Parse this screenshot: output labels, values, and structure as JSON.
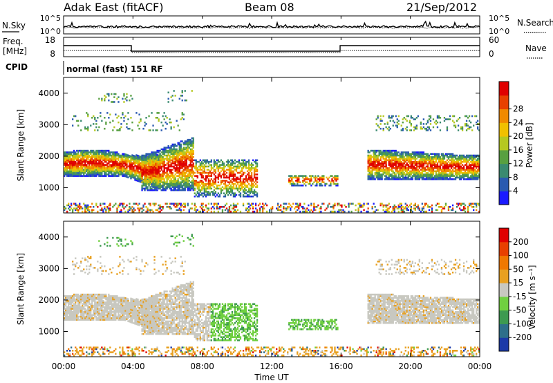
{
  "header": {
    "radar": "Adak East (fitACF)",
    "beam": "Beam 08",
    "date": "21/Sep/2012"
  },
  "nsky_panel": {
    "left_label": "N.Sky",
    "right_label": "N.Search",
    "left_ticks": [
      "10^5",
      "10^0"
    ],
    "right_ticks": [
      "10^5",
      "10^0"
    ]
  },
  "freq_panel": {
    "left_label_line1": "Freq.",
    "left_label_line2": "[MHz]",
    "left_ticks": [
      "18",
      "8"
    ],
    "right_label": "Nave",
    "right_ticks": [
      "60",
      "0"
    ],
    "cpid_label": "CPID",
    "cpid_text": "normal (fast) 151 RF"
  },
  "chart_data": [
    {
      "type": "heatmap",
      "name": "power",
      "ylabel": "Slant Range [km]",
      "yticks": [
        "1000",
        "2000",
        "3000",
        "4000"
      ],
      "ylim": [
        200,
        4500
      ],
      "xlim_hours": [
        0,
        24
      ],
      "colorbar_label": "Power [dB]",
      "colorbar_ticks": [
        "4",
        "8",
        "12",
        "16",
        "20",
        "24",
        "28"
      ],
      "colors": [
        "#1a1aff",
        "#2a5ab0",
        "#3a8a70",
        "#58a040",
        "#b5c820",
        "#f0c000",
        "#f08a00",
        "#e84000",
        "#e00000"
      ]
    },
    {
      "type": "heatmap",
      "name": "velocity",
      "ylabel": "Slant Range [km]",
      "yticks": [
        "1000",
        "2000",
        "3000",
        "4000"
      ],
      "ylim": [
        200,
        4500
      ],
      "xlim_hours": [
        0,
        24
      ],
      "colorbar_label": "Velocity [m s⁻¹]",
      "colorbar_ticks": [
        "200",
        "100",
        "50",
        "15",
        "-15",
        "-50",
        "-100",
        "-200"
      ],
      "colors": [
        "#1c3aa8",
        "#2e6f8a",
        "#3d9a50",
        "#70d040",
        "#c8c8c0",
        "#e8a020",
        "#f07800",
        "#e84000",
        "#e00000"
      ]
    }
  ],
  "x_axis": {
    "ticks": [
      "00:00",
      "04:00",
      "08:00",
      "12:00",
      "16:00",
      "20:00",
      "00:00"
    ],
    "label": "Time UT"
  }
}
